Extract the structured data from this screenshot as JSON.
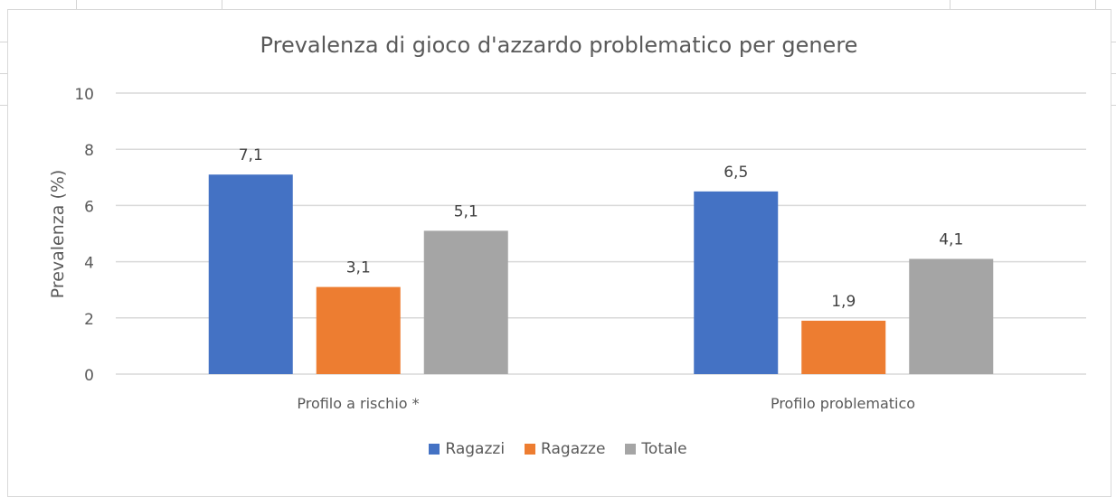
{
  "chart_data": {
    "type": "bar",
    "title": "Prevalenza di gioco d'azzardo problematico per genere",
    "xlabel": "",
    "ylabel": "Prevalenza (%)",
    "ylim": [
      0,
      10
    ],
    "yticks": [
      "0",
      "2",
      "4",
      "6",
      "8",
      "10"
    ],
    "grid": true,
    "legend_position": "bottom",
    "categories": [
      "Profilo a rischio *",
      "Profilo problematico"
    ],
    "series": [
      {
        "name": "Ragazzi",
        "values": [
          7.1,
          6.5
        ],
        "labels": [
          "7,1",
          "6,5"
        ],
        "color": "#4472C4"
      },
      {
        "name": "Ragazze",
        "values": [
          3.1,
          1.9
        ],
        "labels": [
          "3,1",
          "1,9"
        ],
        "color": "#ED7D31"
      },
      {
        "name": "Totale",
        "values": [
          5.1,
          4.1
        ],
        "labels": [
          "5,1",
          "4,1"
        ],
        "color": "#A5A5A5"
      }
    ]
  }
}
